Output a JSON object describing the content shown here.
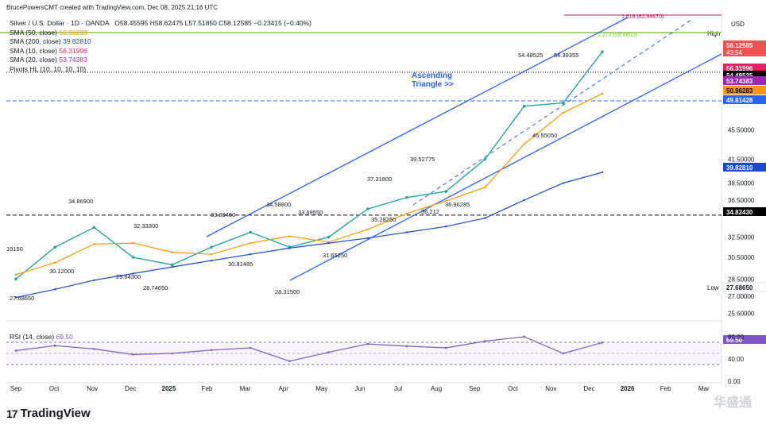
{
  "header": {
    "attribution": "BrucePowersCMT created with TradingView.com, Dec 08, 2025 21:16 UTC"
  },
  "instrument": {
    "title_line": "Silver / U.S. Dollar · 1D · OANDA",
    "ohlc": "O58.45595  H58.62475  L57.51850  C58.12585  −0.23415 (−0.40%)"
  },
  "indicators": [
    {
      "label": "SMA (50, close)",
      "value": "50.96283",
      "color": "#ff9800"
    },
    {
      "label": "SMA (200, close)",
      "value": "39.82810",
      "color": "#1848cc"
    },
    {
      "label": "SMA (10, close)",
      "value": "56.31996",
      "color": "#e91e63"
    },
    {
      "label": "SMA (20, close)",
      "value": "53.74383",
      "color": "#9c27b0"
    },
    {
      "label": "Pivots HL (10, 10, 10, 10)",
      "value": "",
      "color": "#131722"
    }
  ],
  "rsi": {
    "label": "RSI (14, close)",
    "value": "69.50",
    "color": "#7e57c2"
  },
  "axis": {
    "currency": "USD",
    "price_ticks": [
      "59.33870",
      "45.50000",
      "41.50000",
      "38.50000",
      "36.50000",
      "32.50000",
      "30.50000",
      "28.50000",
      "27.00000",
      "25.60000"
    ],
    "rsi_ticks": [
      "80.00",
      "40.00",
      "0.00"
    ],
    "time_ticks": [
      "Sep",
      "Oct",
      "Nov",
      "Dec",
      "2025",
      "Feb",
      "Mar",
      "Apr",
      "May",
      "Jun",
      "Jul",
      "Aug",
      "Sep",
      "Oct",
      "Nov",
      "Dec",
      "2026",
      "Feb",
      "Mar"
    ],
    "high_label": "High",
    "low_label": "Low"
  },
  "price_tags": [
    {
      "text": "58.12585",
      "sub": "43:54",
      "color": "#ef5350",
      "fg": "#ffffff"
    },
    {
      "text": "56.31996",
      "color": "#e91e63",
      "fg": "#ffffff"
    },
    {
      "text": "54.48525",
      "color": "#000000",
      "fg": "#ffffff"
    },
    {
      "text": "53.74383",
      "color": "#9c27b0",
      "fg": "#ffffff"
    },
    {
      "text": "50.96283",
      "color": "#ff9800",
      "fg": "#000000"
    },
    {
      "text": "49.81428",
      "color": "#2962ff",
      "fg": "#ffffff"
    },
    {
      "text": "39.82810",
      "color": "#1848cc",
      "fg": "#ffffff"
    },
    {
      "text": "34.82430",
      "color": "#000000",
      "fg": "#ffffff"
    },
    {
      "text": "27.68650",
      "color": "#ffffff",
      "fg": "#131722"
    },
    {
      "text": "69.50",
      "color": "#7e57c2",
      "fg": "#ffffff"
    }
  ],
  "pivot_labels": [
    "34.86900",
    "32.33300",
    "33.39450",
    "34.58800",
    "33.69550",
    "37.31800",
    "39.52775",
    "54.48525",
    "54.39355",
    "30.12000",
    "29.64300",
    "28.74650",
    "30.81485",
    "28.31500",
    "31.65250",
    "35.28250",
    "36.212",
    "36.96285",
    "45.55050",
    "27.68650",
    "19150"
  ],
  "annotation": {
    "line1": "Ascending",
    "line2": "Triangle >>"
  },
  "fib_labels": [
    "1.618 (62.94470)",
    "1.272 (59.6850)",
    "1.618 (60.00)",
    "2 (65.6700)"
  ],
  "brand": {
    "logo_text": "TradingView",
    "logo_mark": "17"
  },
  "watermark": "华盛通",
  "chart_data": {
    "type": "line",
    "title": "Silver / U.S. Dollar · 1D · OANDA",
    "x": [
      "Sep",
      "Oct",
      "Nov",
      "Dec",
      "2025",
      "Feb",
      "Mar",
      "Apr",
      "May",
      "Jun",
      "Jul",
      "Aug",
      "Sep",
      "Oct",
      "Nov",
      "Dec"
    ],
    "series": [
      {
        "name": "Silver / U.S. Dollar",
        "values": [
          28.5,
          31.5,
          33.5,
          30.5,
          29.8,
          31.5,
          33.0,
          31.5,
          32.5,
          35.5,
          36.8,
          37.5,
          41.5,
          49.0,
          49.5,
          58.1
        ]
      },
      {
        "name": "SMA (50, close)",
        "values": [
          28.9,
          30.0,
          31.8,
          31.9,
          31.0,
          30.8,
          31.9,
          32.6,
          32.0,
          33.3,
          35.0,
          36.4,
          38.0,
          43.5,
          48.0,
          50.96
        ]
      },
      {
        "name": "SMA (200, close)",
        "values": [
          26.9,
          27.6,
          28.4,
          29.0,
          29.6,
          30.2,
          30.8,
          31.4,
          31.9,
          32.4,
          33.0,
          33.6,
          34.5,
          36.5,
          38.5,
          39.83
        ]
      }
    ],
    "rsi": {
      "name": "RSI (14, close)",
      "values": [
        55,
        64,
        58,
        48,
        50,
        56,
        60,
        36,
        52,
        67,
        63,
        60,
        72,
        80,
        50,
        69.5
      ],
      "ylim": [
        0,
        100
      ]
    },
    "price_axis": "log",
    "ylim": [
      25.0,
      66.0
    ],
    "levels": {
      "resistance_high": 54.48525,
      "support_low": 34.8243,
      "pivot_mid": 49.81428
    },
    "pivots_high": [
      34.869,
      32.333,
      33.3945,
      34.588,
      33.6955,
      37.318,
      39.52775,
      54.48525,
      54.39355
    ],
    "pivots_low": [
      27.6865,
      30.12,
      29.643,
      28.7465,
      30.81485,
      28.315,
      31.6525,
      35.2825,
      36.212,
      36.96285,
      45.5505
    ],
    "grid": true
  }
}
